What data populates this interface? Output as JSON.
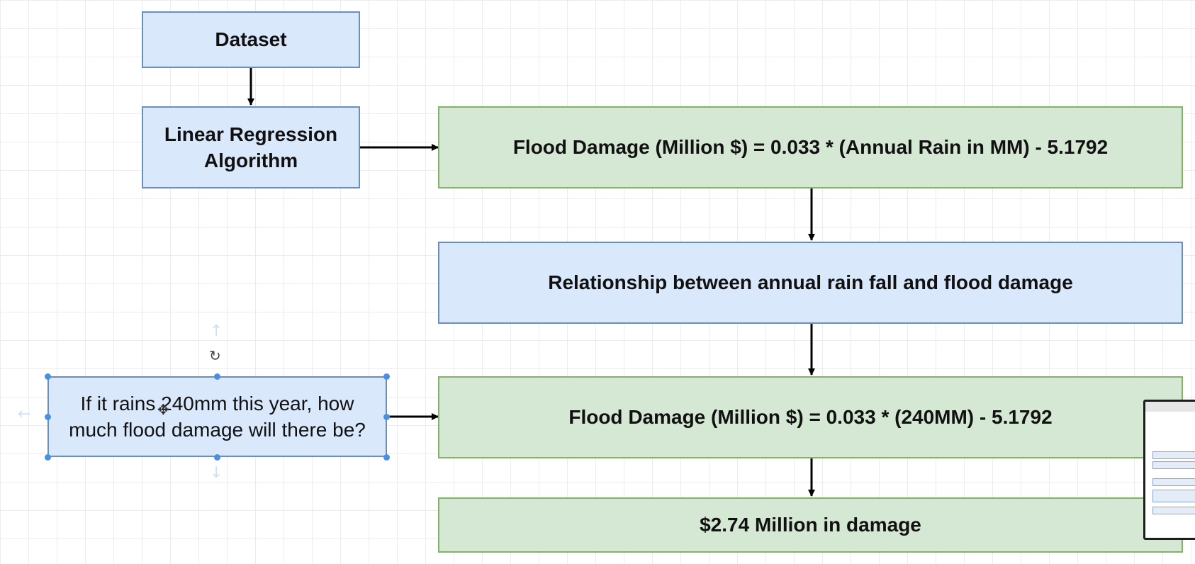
{
  "nodes": {
    "dataset": "Dataset",
    "algorithm": "Linear Regression Algorithm",
    "equation": "Flood Damage (Million $) = 0.033 * (Annual Rain in MM) - 5.1792",
    "relationship": "Relationship between annual rain fall and flood damage",
    "question": "If it rains 240mm this year, how much flood damage will there be?",
    "substituted": "Flood Damage (Million $) = 0.033 * (240MM) - 5.1792",
    "result": "$2.74 Million in damage"
  },
  "colors": {
    "blue_fill": "#dae8fc",
    "blue_stroke": "#6c8ebf",
    "green_fill": "#d5e8d4",
    "green_stroke": "#82b366",
    "selection": "#4a90e2"
  },
  "icons": {
    "rotate": "rotate-icon",
    "move": "move-cursor-icon"
  }
}
